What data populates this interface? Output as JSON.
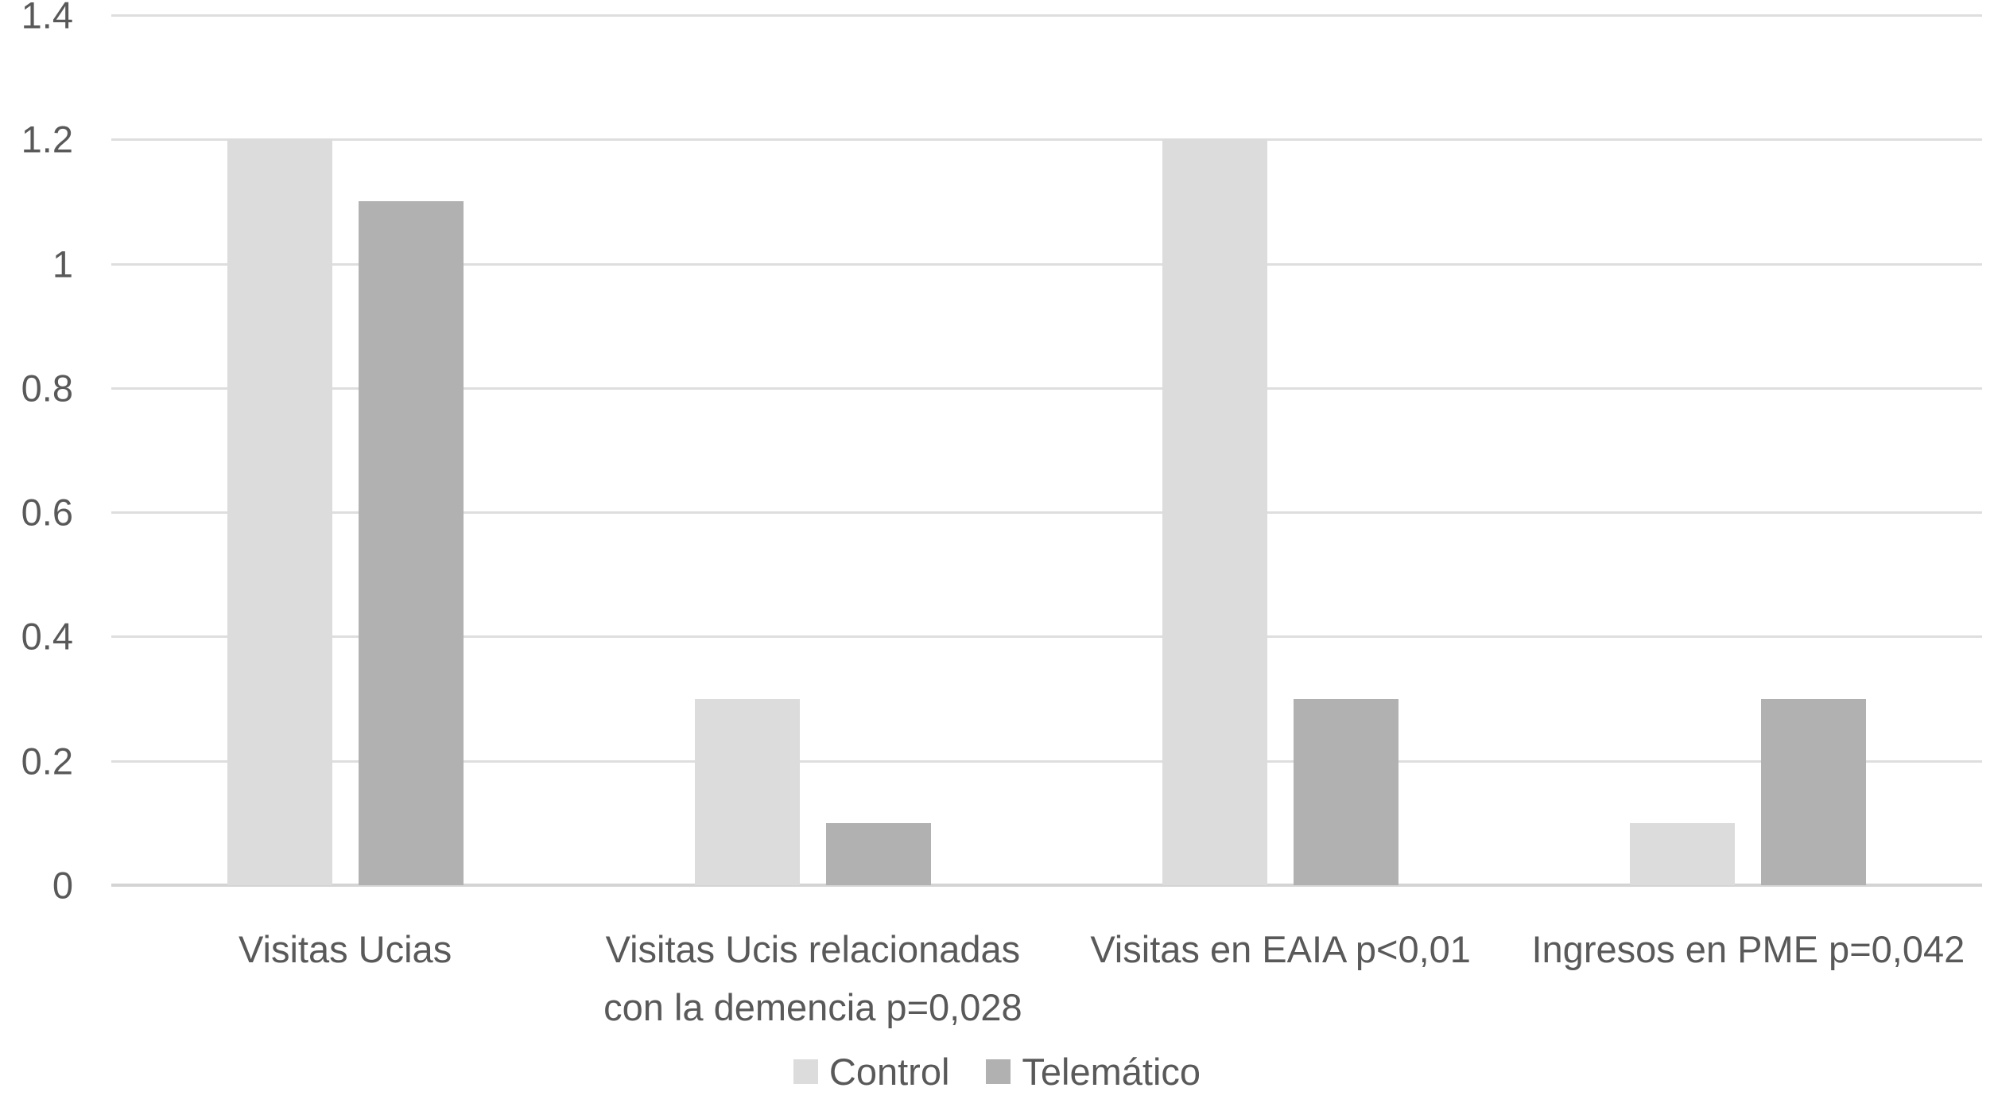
{
  "chart_data": {
    "type": "bar",
    "title": "",
    "categories": [
      "Visitas Ucias",
      "Visitas Ucis relacionadas con la demencia p=0,028",
      "Visitas en EAIA p<0,01",
      "Ingresos en PME p=0,042"
    ],
    "series": [
      {
        "name": "Control",
        "key": "control",
        "color": "#dcdcdc",
        "values": [
          1.2,
          0.3,
          1.2,
          0.1
        ]
      },
      {
        "name": "Telemático",
        "key": "telematico",
        "color": "#b1b1b1",
        "values": [
          1.1,
          0.1,
          0.3,
          0.3
        ]
      }
    ],
    "xlabel": "",
    "ylabel": "",
    "ylim": [
      0,
      1.4
    ],
    "ytick_step": 0.2,
    "ytick_labels": [
      "0",
      "0.2",
      "0.4",
      "0.6",
      "0.8",
      "1",
      "1.2",
      "1.4"
    ],
    "grid": "horizontal",
    "gridline_color": "#dedede",
    "axis_line_color": "#d4d4d4",
    "text_color": "#595959",
    "background_color": "#ffffff",
    "legend_position": "bottom"
  }
}
